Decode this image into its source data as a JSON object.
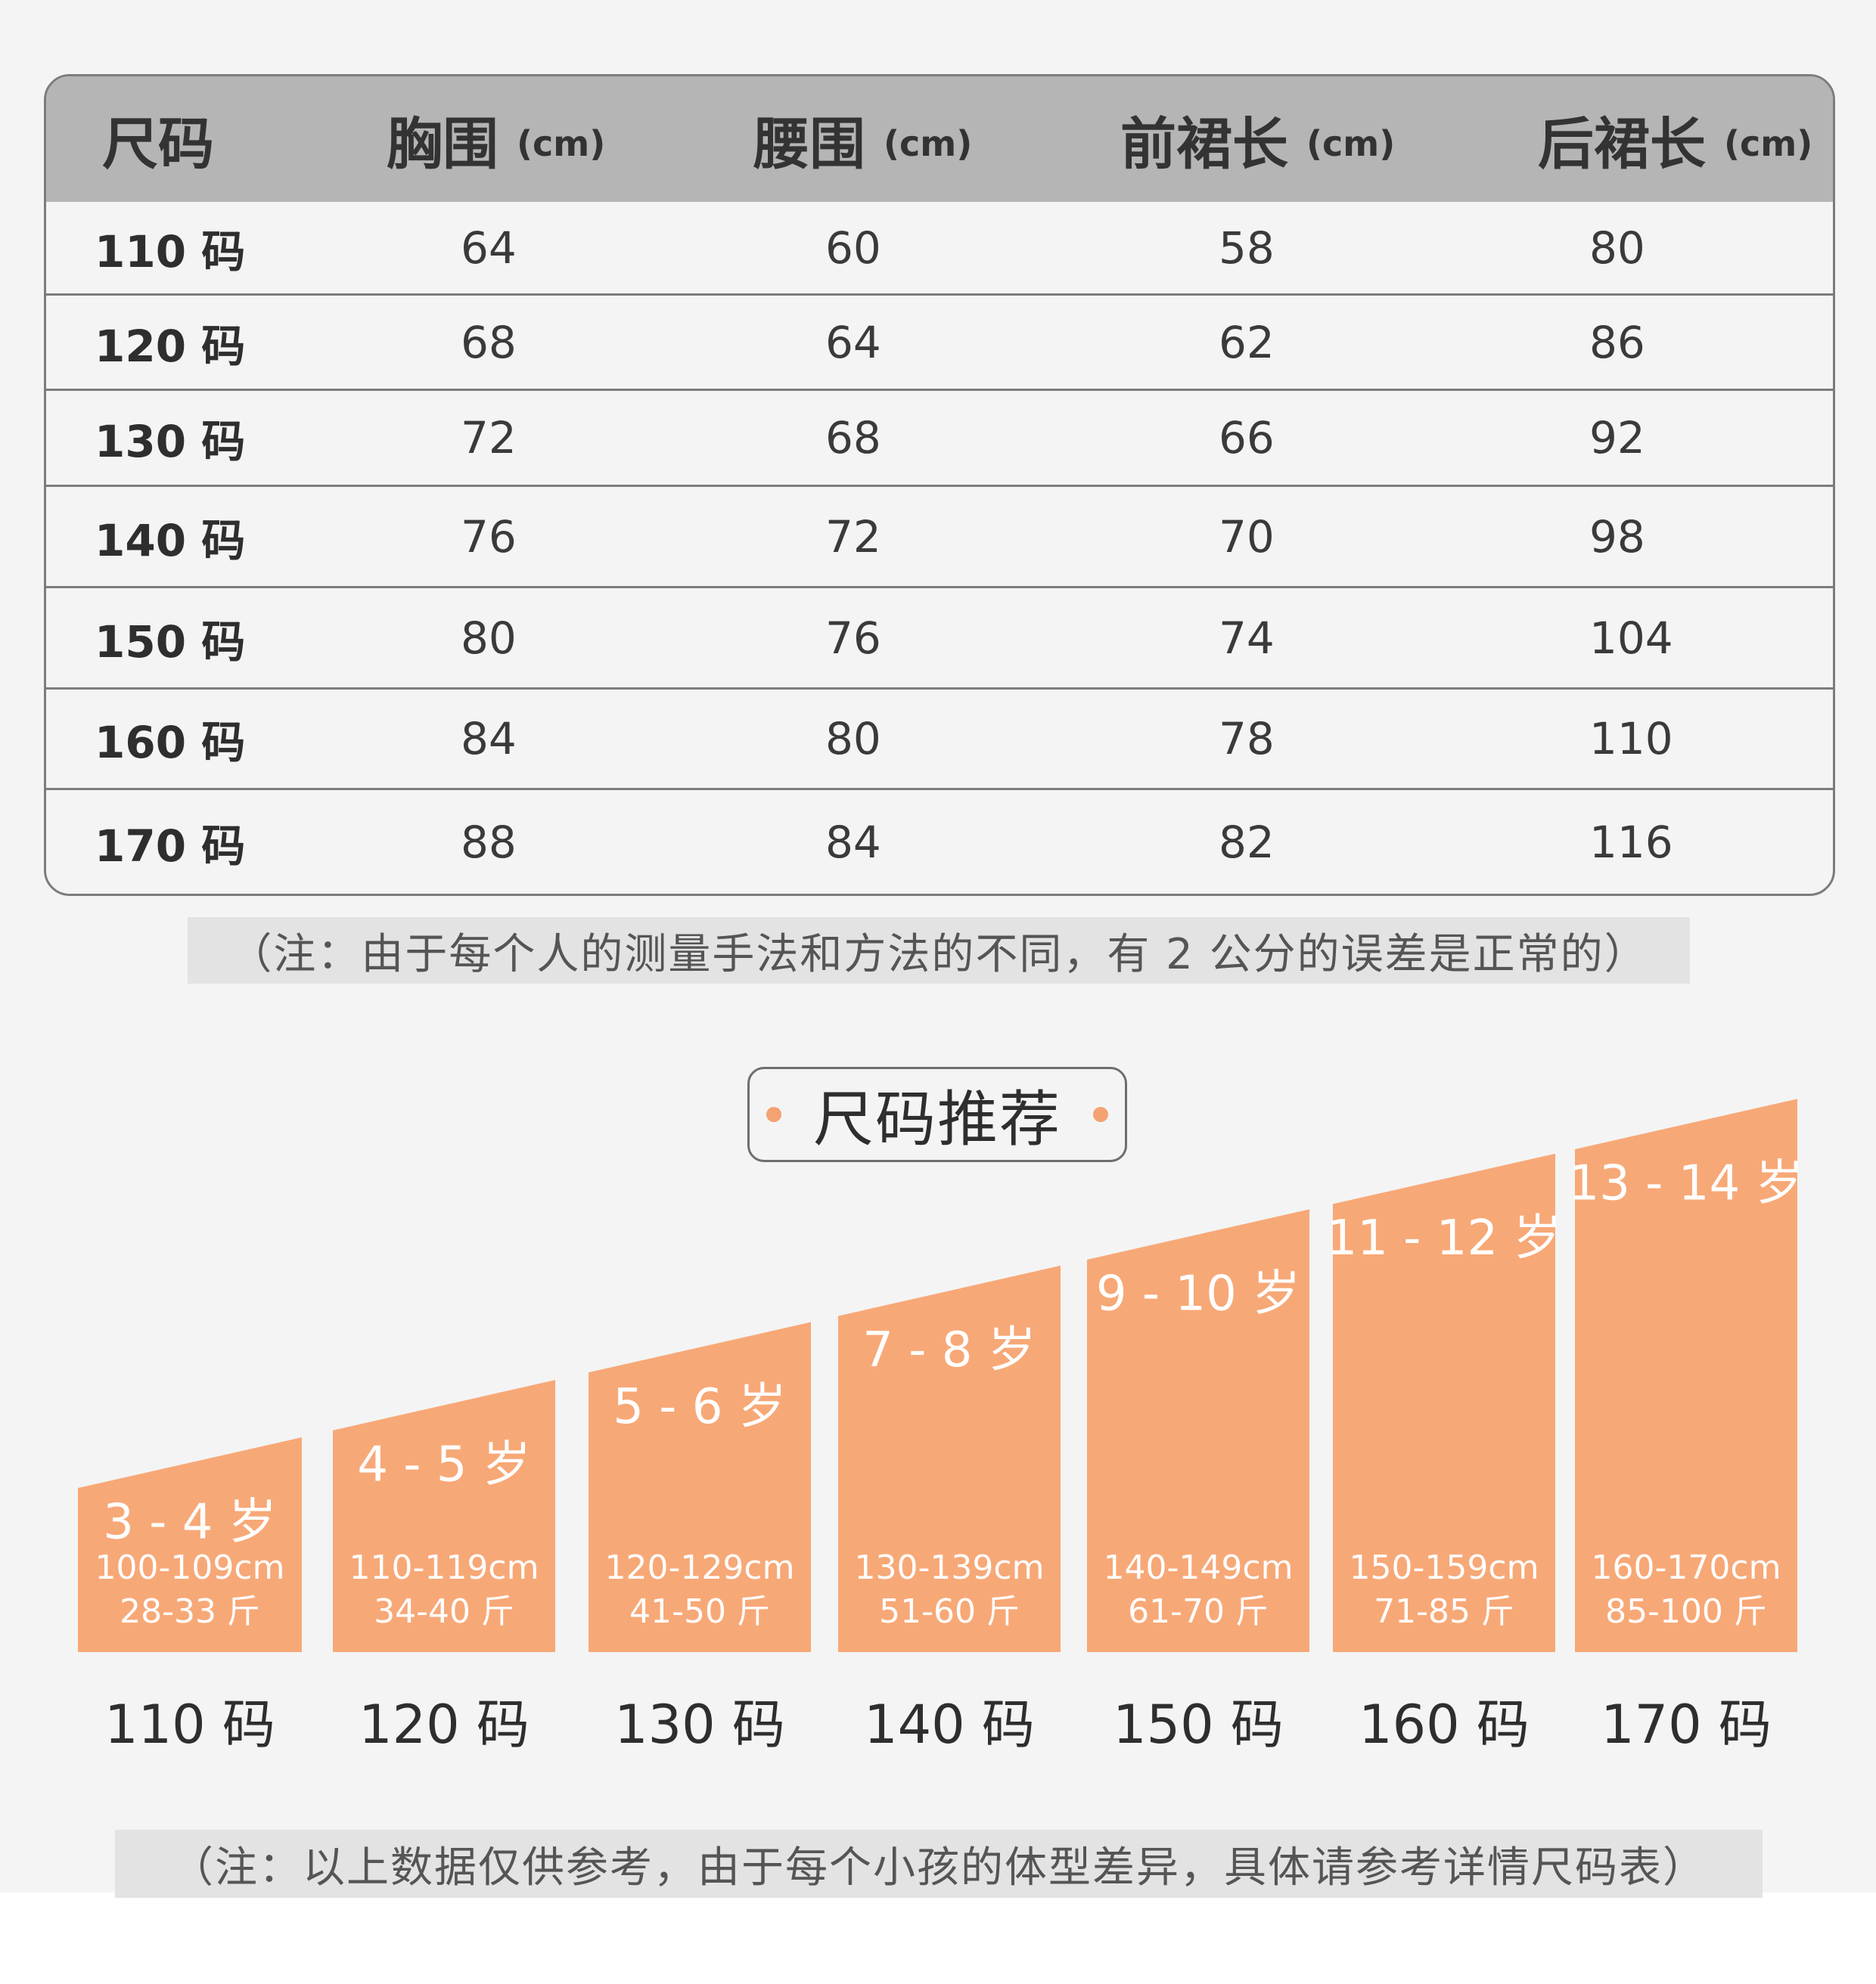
{
  "table": {
    "headers": [
      {
        "label": "尺码",
        "unit": ""
      },
      {
        "label": "胸围",
        "unit": "(cm)"
      },
      {
        "label": "腰围",
        "unit": "(cm)"
      },
      {
        "label": "前裙长",
        "unit": "(cm)"
      },
      {
        "label": "后裙长",
        "unit": "(cm)"
      }
    ],
    "rows": [
      [
        "110 码",
        "64",
        "60",
        "58",
        "80"
      ],
      [
        "120 码",
        "68",
        "64",
        "62",
        "86"
      ],
      [
        "130 码",
        "72",
        "68",
        "66",
        "92"
      ],
      [
        "140 码",
        "76",
        "72",
        "70",
        "98"
      ],
      [
        "150 码",
        "80",
        "76",
        "74",
        "104"
      ],
      [
        "160 码",
        "84",
        "80",
        "78",
        "110"
      ],
      [
        "170 码",
        "88",
        "84",
        "82",
        "116"
      ]
    ]
  },
  "note_1": "（注：由于每个人的测量手法和方法的不同，有 2 公分的误差是正常的）",
  "recommend_title": "尺码推荐",
  "recommend": [
    {
      "age": "3 - 4 岁",
      "height": "100-109cm",
      "weight": "28-33 斤",
      "size": "110 码"
    },
    {
      "age": "4 - 5 岁",
      "height": "110-119cm",
      "weight": "34-40 斤",
      "size": "120 码"
    },
    {
      "age": "5 - 6 岁",
      "height": "120-129cm",
      "weight": "41-50 斤",
      "size": "130 码"
    },
    {
      "age": "7 - 8 岁",
      "height": "130-139cm",
      "weight": "51-60 斤",
      "size": "140 码"
    },
    {
      "age": "9 - 10 岁",
      "height": "140-149cm",
      "weight": "61-70 斤",
      "size": "150 码"
    },
    {
      "age": "11 - 12 岁",
      "height": "150-159cm",
      "weight": "71-85 斤",
      "size": "160 码"
    },
    {
      "age": "13 - 14 岁",
      "height": "160-170cm",
      "weight": "85-100 斤",
      "size": "170 码"
    }
  ],
  "note_2": "（注：以上数据仅供参考，由于每个小孩的体型差异，具体请参考详情尺码表）",
  "colors": {
    "bar": "#f7a877",
    "header": "#b5b5b5",
    "dot": "#f4a271"
  }
}
